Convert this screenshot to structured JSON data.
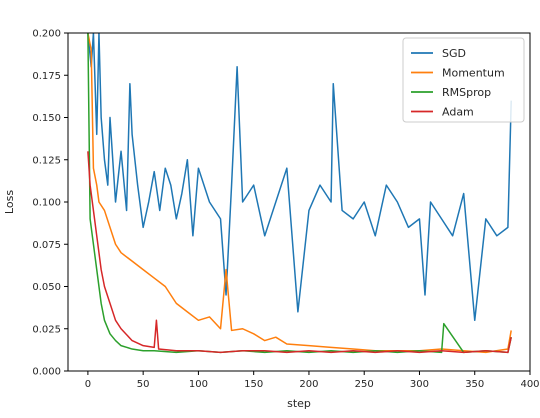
{
  "chart_data": {
    "type": "line",
    "title": "",
    "xlabel": "step",
    "ylabel": "Loss",
    "xlim": [
      -18,
      400
    ],
    "ylim": [
      0,
      0.2
    ],
    "xticks": [
      0,
      50,
      100,
      150,
      200,
      250,
      300,
      350,
      400
    ],
    "yticks": [
      0.0,
      0.025,
      0.05,
      0.075,
      0.1,
      0.125,
      0.15,
      0.175,
      0.2
    ],
    "xtick_labels": [
      "0",
      "50",
      "100",
      "150",
      "200",
      "250",
      "300",
      "350",
      "400"
    ],
    "ytick_labels": [
      "0.000",
      "0.025",
      "0.050",
      "0.075",
      "0.100",
      "0.125",
      "0.150",
      "0.175",
      "0.200"
    ],
    "grid": false,
    "legend_position": "top-right",
    "series": [
      {
        "name": "SGD",
        "color": "#1f77b4",
        "x": [
          0,
          3,
          5,
          8,
          10,
          12,
          15,
          18,
          20,
          25,
          30,
          35,
          38,
          40,
          45,
          50,
          55,
          60,
          65,
          70,
          75,
          80,
          85,
          90,
          95,
          100,
          110,
          120,
          125,
          130,
          135,
          140,
          150,
          160,
          170,
          180,
          190,
          200,
          210,
          220,
          222,
          230,
          240,
          250,
          260,
          270,
          280,
          290,
          300,
          305,
          310,
          320,
          330,
          340,
          350,
          360,
          370,
          380,
          383
        ],
        "values": [
          0.2,
          0.18,
          0.2,
          0.14,
          0.2,
          0.15,
          0.125,
          0.11,
          0.15,
          0.1,
          0.13,
          0.095,
          0.17,
          0.14,
          0.11,
          0.085,
          0.1,
          0.118,
          0.095,
          0.12,
          0.11,
          0.09,
          0.105,
          0.125,
          0.08,
          0.12,
          0.1,
          0.09,
          0.045,
          0.11,
          0.18,
          0.1,
          0.11,
          0.08,
          0.1,
          0.12,
          0.035,
          0.095,
          0.11,
          0.1,
          0.17,
          0.095,
          0.09,
          0.1,
          0.08,
          0.11,
          0.1,
          0.085,
          0.09,
          0.045,
          0.1,
          0.09,
          0.08,
          0.105,
          0.03,
          0.09,
          0.08,
          0.085,
          0.16
        ]
      },
      {
        "name": "Momentum",
        "color": "#ff7f0e",
        "x": [
          0,
          3,
          5,
          8,
          10,
          15,
          20,
          25,
          30,
          40,
          50,
          60,
          70,
          80,
          90,
          100,
          110,
          120,
          125,
          130,
          140,
          150,
          160,
          170,
          180,
          200,
          220,
          240,
          260,
          280,
          300,
          320,
          340,
          360,
          380,
          383
        ],
        "values": [
          0.2,
          0.19,
          0.12,
          0.11,
          0.1,
          0.095,
          0.085,
          0.075,
          0.07,
          0.065,
          0.06,
          0.055,
          0.05,
          0.04,
          0.035,
          0.03,
          0.032,
          0.025,
          0.06,
          0.024,
          0.025,
          0.022,
          0.018,
          0.02,
          0.016,
          0.015,
          0.014,
          0.013,
          0.012,
          0.012,
          0.012,
          0.013,
          0.012,
          0.011,
          0.013,
          0.024
        ]
      },
      {
        "name": "RMSprop",
        "color": "#2ca02c",
        "x": [
          0,
          2,
          4,
          6,
          8,
          10,
          12,
          15,
          20,
          25,
          30,
          40,
          50,
          60,
          80,
          100,
          120,
          140,
          160,
          180,
          200,
          220,
          240,
          260,
          280,
          300,
          320,
          322,
          340,
          360,
          380,
          383
        ],
        "values": [
          0.2,
          0.09,
          0.08,
          0.07,
          0.06,
          0.05,
          0.04,
          0.03,
          0.022,
          0.018,
          0.015,
          0.013,
          0.012,
          0.012,
          0.011,
          0.012,
          0.011,
          0.012,
          0.011,
          0.012,
          0.011,
          0.012,
          0.011,
          0.012,
          0.011,
          0.012,
          0.011,
          0.028,
          0.011,
          0.012,
          0.011,
          0.02
        ]
      },
      {
        "name": "Adam",
        "color": "#d62728",
        "x": [
          0,
          2,
          4,
          6,
          8,
          10,
          12,
          15,
          20,
          25,
          30,
          40,
          50,
          60,
          62,
          64,
          80,
          100,
          120,
          140,
          160,
          180,
          200,
          220,
          240,
          260,
          280,
          300,
          320,
          340,
          360,
          380,
          383
        ],
        "values": [
          0.13,
          0.11,
          0.1,
          0.09,
          0.08,
          0.07,
          0.06,
          0.05,
          0.04,
          0.03,
          0.025,
          0.018,
          0.015,
          0.014,
          0.03,
          0.013,
          0.012,
          0.012,
          0.011,
          0.012,
          0.012,
          0.011,
          0.012,
          0.011,
          0.012,
          0.011,
          0.012,
          0.011,
          0.012,
          0.011,
          0.012,
          0.011,
          0.02
        ]
      }
    ]
  }
}
